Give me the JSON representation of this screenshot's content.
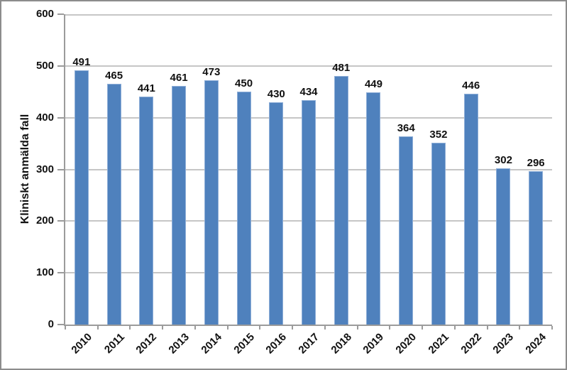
{
  "figure": {
    "background": "#ffffff",
    "border_color": "#8c8c8c"
  },
  "chart_data": {
    "type": "bar",
    "title": "",
    "categories": [
      "2010",
      "2011",
      "2012",
      "2013",
      "2014",
      "2015",
      "2016",
      "2017",
      "2018",
      "2019",
      "2020",
      "2021",
      "2022",
      "2023",
      "2024"
    ],
    "values": [
      491,
      465,
      441,
      461,
      473,
      450,
      430,
      434,
      481,
      449,
      364,
      352,
      446,
      302,
      296
    ],
    "xlabel": "",
    "ylabel": "Kliniskt anmälda fall",
    "ylim": [
      0,
      600
    ],
    "yticks": [
      0,
      100,
      200,
      300,
      400,
      500,
      600
    ],
    "grid": "horizontal",
    "legend_position": "none",
    "data_labels": true,
    "colors": {
      "bar_fill": "#4f81bd",
      "bar_border": "#8fafd8",
      "gridline": "#c6c6c6",
      "axis": "#9b9b9b",
      "text": "#111111"
    }
  }
}
